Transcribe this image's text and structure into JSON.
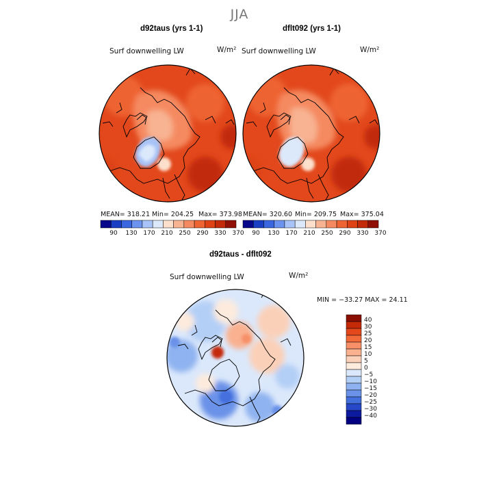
{
  "figure_title": "JJA",
  "panels": [
    {
      "title": "d92taus (yrs 1-1)",
      "variable": "Surf downwelling LW",
      "units": "W/m²",
      "stats": {
        "mean_label": "MEAN= 318.21",
        "min_label": "Min= 204.25",
        "max_label": "Max= 373.98"
      }
    },
    {
      "title": "dflt092 (yrs 1-1)",
      "variable": "Surf downwelling LW",
      "units": "W/m²",
      "stats": {
        "mean_label": "MEAN= 320.60",
        "min_label": "Min= 209.75",
        "max_label": "Max= 375.04"
      }
    }
  ],
  "colorbar": {
    "ticks": [
      "90",
      "130",
      "170",
      "210",
      "250",
      "290",
      "330",
      "370"
    ],
    "colors": [
      "#08088a",
      "#1a3fc4",
      "#3a66e0",
      "#6b93ef",
      "#a7c3f7",
      "#dce9fb",
      "#fde0cc",
      "#f8b392",
      "#f58a60",
      "#ee6432",
      "#dd4315",
      "#c22a08",
      "#8f1004"
    ]
  },
  "diff_panel": {
    "title": "d92taus - dflt092",
    "variable": "Surf downwelling LW",
    "units": "W/m²",
    "stats_label": "MIN = −33.27  MAX =  24.11",
    "colorbar_ticks": [
      "40",
      "30",
      "25",
      "20",
      "15",
      "10",
      "5",
      "0",
      "−5",
      "−10",
      "−15",
      "−20",
      "−25",
      "−30",
      "−40"
    ],
    "colorbar_colors": [
      "#8a0f00",
      "#c52a08",
      "#e2481c",
      "#f26a3a",
      "#f79068",
      "#f9b190",
      "#fbd0b8",
      "#fdebdd",
      "#dbe8fb",
      "#b4cff6",
      "#8fb3f0",
      "#6a92e8",
      "#4470de",
      "#2648c8",
      "#0c1aa0",
      "#000080"
    ]
  }
}
